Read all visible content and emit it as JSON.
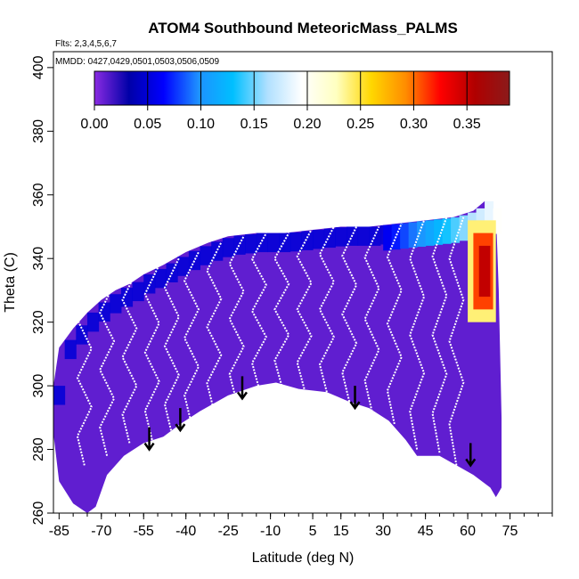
{
  "chart_data": {
    "type": "heatmap",
    "title": "ATOM4 Southbound MeteoricMass_PALMS",
    "flights_note": "Flts: 2,3,4,5,6,7",
    "dates_note": "MMDD: 0427,0429,0501,0503,0506,0509",
    "xlabel": "Latitude (deg N)",
    "ylabel": "Theta (C)",
    "xlim": [
      -87,
      90
    ],
    "ylim": [
      260,
      405
    ],
    "x_ticks": [
      -85,
      -70,
      -55,
      -40,
      -25,
      -10,
      5,
      15,
      30,
      45,
      60,
      75
    ],
    "x_tick_labels": [
      "-85",
      "-70",
      "-55",
      "-40",
      "-25",
      "-10",
      "5",
      "15",
      "30",
      "45",
      "60",
      "75"
    ],
    "y_ticks": [
      260,
      280,
      300,
      320,
      340,
      360,
      380,
      400
    ],
    "y_tick_labels": [
      "260",
      "280",
      "300",
      "320",
      "340",
      "360",
      "380",
      "400"
    ],
    "colorbar": {
      "range": [
        0,
        0.39
      ],
      "ticks": [
        0,
        0.05,
        0.1,
        0.15,
        0.2,
        0.25,
        0.3,
        0.35
      ],
      "tick_labels": [
        "0.00",
        "0.05",
        "0.10",
        "0.15",
        "0.20",
        "0.25",
        "0.30",
        "0.35"
      ],
      "colors": [
        "#8a2be2",
        "#0000a8",
        "#0000ff",
        "#1e90ff",
        "#00bfff",
        "#b0e0ff",
        "#ffffff",
        "#ffffc0",
        "#ffd700",
        "#ff8c00",
        "#ff0000",
        "#b00000",
        "#8b1a1a"
      ]
    },
    "coverage": {
      "lower_boundary": [
        [
          -87,
          285
        ],
        [
          -85,
          270
        ],
        [
          -80,
          263
        ],
        [
          -75,
          260
        ],
        [
          -72,
          262
        ],
        [
          -68,
          272
        ],
        [
          -62,
          278
        ],
        [
          -55,
          282
        ],
        [
          -48,
          284
        ],
        [
          -42,
          288
        ],
        [
          -35,
          292
        ],
        [
          -25,
          297
        ],
        [
          -15,
          300
        ],
        [
          -8,
          301
        ],
        [
          0,
          299
        ],
        [
          10,
          298
        ],
        [
          18,
          295
        ],
        [
          25,
          293
        ],
        [
          32,
          289
        ],
        [
          38,
          283
        ],
        [
          42,
          278
        ],
        [
          50,
          278
        ],
        [
          56,
          275
        ],
        [
          62,
          272
        ],
        [
          68,
          268
        ],
        [
          70,
          265
        ]
      ],
      "upper_boundary": [
        [
          -87,
          300
        ],
        [
          -85,
          312
        ],
        [
          -80,
          318
        ],
        [
          -75,
          323
        ],
        [
          -70,
          327
        ],
        [
          -65,
          330
        ],
        [
          -60,
          332
        ],
        [
          -55,
          335
        ],
        [
          -48,
          338
        ],
        [
          -40,
          342
        ],
        [
          -32,
          345
        ],
        [
          -25,
          347
        ],
        [
          -15,
          348
        ],
        [
          -5,
          348
        ],
        [
          5,
          349
        ],
        [
          15,
          350
        ],
        [
          25,
          350
        ],
        [
          35,
          351
        ],
        [
          45,
          352
        ],
        [
          55,
          353
        ],
        [
          62,
          355
        ],
        [
          66,
          358
        ],
        [
          70,
          355
        ],
        [
          71,
          330
        ],
        [
          72,
          290
        ],
        [
          72,
          268
        ]
      ]
    },
    "hotspot": {
      "lat_range": [
        60,
        70
      ],
      "theta_range": [
        320,
        348
      ],
      "value": 0.35
    },
    "blue_band": {
      "lat_range": [
        -87,
        30
      ],
      "theta_range": [
        335,
        350
      ],
      "value": 0.05
    },
    "flight_tracks": [
      {
        "lat": -76,
        "theta_range": [
          275,
          330
        ]
      },
      {
        "lat": -68,
        "theta_range": [
          278,
          332
        ]
      },
      {
        "lat": -60,
        "theta_range": [
          282,
          336
        ]
      },
      {
        "lat": -52,
        "theta_range": [
          283,
          338
        ]
      },
      {
        "lat": -45,
        "theta_range": [
          285,
          340
        ]
      },
      {
        "lat": -38,
        "theta_range": [
          288,
          342
        ]
      },
      {
        "lat": -30,
        "theta_range": [
          292,
          345
        ]
      },
      {
        "lat": -22,
        "theta_range": [
          295,
          347
        ]
      },
      {
        "lat": -14,
        "theta_range": [
          299,
          348
        ]
      },
      {
        "lat": -6,
        "theta_range": [
          300,
          348
        ]
      },
      {
        "lat": 2,
        "theta_range": [
          299,
          349
        ]
      },
      {
        "lat": 10,
        "theta_range": [
          298,
          350
        ]
      },
      {
        "lat": 18,
        "theta_range": [
          295,
          350
        ]
      },
      {
        "lat": 26,
        "theta_range": [
          292,
          350
        ]
      },
      {
        "lat": 34,
        "theta_range": [
          288,
          351
        ]
      },
      {
        "lat": 42,
        "theta_range": [
          280,
          352
        ]
      },
      {
        "lat": 50,
        "theta_range": [
          279,
          353
        ]
      },
      {
        "lat": 56,
        "theta_range": [
          275,
          353
        ]
      }
    ],
    "arrows": [
      {
        "lat": -53,
        "theta": 280
      },
      {
        "lat": -42,
        "theta": 286
      },
      {
        "lat": -20,
        "theta": 296
      },
      {
        "lat": 20,
        "theta": 293
      },
      {
        "lat": 61,
        "theta": 275
      }
    ]
  }
}
